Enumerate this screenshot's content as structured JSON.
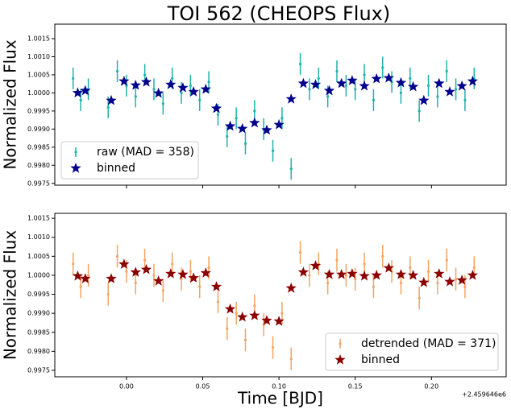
{
  "chart_data": [
    {
      "type": "errorbar-scatter",
      "title": "TOI 562 (CHEOPS Flux)",
      "y_label": "Normalized Flux",
      "legend": "lower left",
      "xlim": [
        -0.047,
        0.249
      ],
      "xticks": [
        0,
        0.05,
        0.1,
        0.15,
        0.2
      ],
      "ylim": [
        0.99745,
        1.0019
      ],
      "yticks": [
        1.0015,
        {
          "value": 1.001,
          "label": "1.0010"
        },
        1.0005,
        {
          "value": 1,
          "label": "1.0000"
        },
        0.9995,
        {
          "value": 0.999,
          "label": "0.9990"
        },
        0.9985,
        {
          "value": 0.998,
          "label": "0.9980"
        },
        0.9975
      ],
      "series": [
        {
          "name": "raw (MAD = 358)",
          "color": "#20b2aa",
          "marker": "errorbar",
          "error": 0.0003,
          "x": [
            -0.035,
            -0.03,
            -0.025,
            -0.012,
            -0.006,
            0.0,
            0.006,
            0.012,
            0.018,
            0.024,
            0.03,
            0.036,
            0.042,
            0.048,
            0.054,
            0.06,
            0.066,
            0.072,
            0.078,
            0.084,
            0.09,
            0.096,
            0.102,
            0.108,
            0.114,
            0.12,
            0.126,
            0.132,
            0.138,
            0.144,
            0.15,
            0.156,
            0.162,
            0.168,
            0.174,
            0.18,
            0.186,
            0.192,
            0.198,
            0.204,
            0.21,
            0.216,
            0.222,
            0.228
          ],
          "values": [
            1.0004,
            0.9998,
            1.0001,
            0.9996,
            1.0006,
            1.0002,
            0.9999,
            1.0005,
            1.0001,
            0.9997,
            1.0004,
            1.0,
            1.0002,
            0.9998,
            1.0003,
            0.9994,
            0.9988,
            0.9993,
            0.9986,
            0.9995,
            0.999,
            0.9984,
            0.9993,
            0.9979,
            1.0008,
            1.0001,
            1.0004,
            0.9999,
            1.0006,
            1.0002,
            1.0001,
            1.0005,
            0.9998,
            1.0007,
            1.0003,
            1.0,
            1.0004,
            0.9995,
            1.0002,
            0.9999,
            1.0006,
            1.0001,
            0.9998,
            1.0004
          ]
        },
        {
          "name": "binned",
          "color": "#00008b",
          "marker": "star",
          "x": [
            -0.032,
            -0.027,
            -0.01,
            -0.0016,
            0.006,
            0.013,
            0.021,
            0.029,
            0.037,
            0.044,
            0.052,
            0.059,
            0.068,
            0.076,
            0.084,
            0.092,
            0.1,
            0.108,
            0.116,
            0.124,
            0.133,
            0.141,
            0.148,
            0.156,
            0.164,
            0.172,
            0.18,
            0.188,
            0.195,
            0.205,
            0.212,
            0.22,
            0.227
          ],
          "values": [
            1.0,
            1.00006,
            0.99979,
            1.00032,
            1.00021,
            1.0003,
            0.99999,
            1.00023,
            1.00014,
            1.00003,
            1.0001,
            0.99957,
            0.99908,
            0.99901,
            0.99917,
            0.99897,
            0.99912,
            0.99983,
            1.00026,
            1.00023,
            1.00006,
            1.00026,
            1.00034,
            1.00019,
            1.00039,
            1.00041,
            1.00028,
            1.00017,
            0.99979,
            1.00026,
            1.00003,
            1.00019,
            1.00032
          ]
        }
      ]
    },
    {
      "type": "errorbar-scatter",
      "y_label": "Normalized Flux",
      "x_label": "Time [BJD]",
      "x_offset_label": "+2.459646e6",
      "legend": "lower right",
      "xlim": [
        -0.047,
        0.249
      ],
      "xticks": [
        {
          "value": 0,
          "label": "0.00"
        },
        0.05,
        {
          "value": 0.1,
          "label": "0.10"
        },
        0.15,
        {
          "value": 0.2,
          "label": "0.20"
        }
      ],
      "ylim": [
        0.99733,
        1.00163
      ],
      "yticks": [
        1.0015,
        {
          "value": 1.001,
          "label": "1.0010"
        },
        1.0005,
        {
          "value": 1,
          "label": "1.0000"
        },
        0.9995,
        {
          "value": 0.999,
          "label": "0.9990"
        },
        0.9985,
        {
          "value": 0.998,
          "label": "0.9980"
        },
        0.9975
      ],
      "series": [
        {
          "name": "detrended (MAD = 371)",
          "color": "#f4a460",
          "marker": "errorbar",
          "error": 0.0003,
          "x": [
            -0.035,
            -0.03,
            -0.025,
            -0.012,
            -0.006,
            0.0,
            0.006,
            0.012,
            0.018,
            0.024,
            0.03,
            0.036,
            0.042,
            0.048,
            0.054,
            0.06,
            0.066,
            0.072,
            0.078,
            0.084,
            0.09,
            0.096,
            0.102,
            0.108,
            0.114,
            0.12,
            0.126,
            0.132,
            0.138,
            0.144,
            0.15,
            0.156,
            0.162,
            0.168,
            0.174,
            0.18,
            0.186,
            0.192,
            0.198,
            0.204,
            0.21,
            0.216,
            0.222,
            0.228
          ],
          "values": [
            1.0003,
            0.9997,
            1.0,
            0.9995,
            1.0005,
            1.0001,
            0.9998,
            1.0004,
            1.0,
            0.9996,
            1.0003,
            0.9999,
            1.0001,
            0.9997,
            1.0002,
            0.9993,
            0.9986,
            0.999,
            0.9983,
            0.9992,
            0.9987,
            0.9981,
            0.999,
            0.9978,
            1.0006,
            1.0,
            1.0003,
            0.9998,
            1.0004,
            1.0,
            0.9999,
            1.0003,
            0.9997,
            1.0005,
            1.0001,
            0.9998,
            1.0002,
            0.9994,
            1.0001,
            0.9998,
            1.0004,
            0.9999,
            0.9997,
            1.0002
          ]
        },
        {
          "name": "binned",
          "color": "#8b0000",
          "marker": "star",
          "x": [
            -0.032,
            -0.027,
            -0.01,
            -0.0016,
            0.006,
            0.013,
            0.021,
            0.029,
            0.037,
            0.044,
            0.052,
            0.059,
            0.068,
            0.076,
            0.084,
            0.092,
            0.1,
            0.108,
            0.116,
            0.124,
            0.133,
            0.141,
            0.148,
            0.156,
            0.164,
            0.172,
            0.18,
            0.188,
            0.195,
            0.205,
            0.212,
            0.22,
            0.227
          ],
          "values": [
            0.99998,
            0.99991,
            0.99991,
            1.00029,
            1.00008,
            1.00015,
            0.99985,
            1.00004,
            1.00002,
            0.99993,
            1.00006,
            0.9997,
            0.99911,
            0.9989,
            0.99894,
            0.99881,
            0.99879,
            0.99966,
            1.00008,
            1.00025,
            1.00002,
            1.00002,
            1.00004,
            0.99998,
            1.0,
            1.00019,
            1.00002,
            1.0,
            0.99981,
            1.00004,
            0.99983,
            0.99987,
            1.0
          ]
        }
      ]
    }
  ]
}
